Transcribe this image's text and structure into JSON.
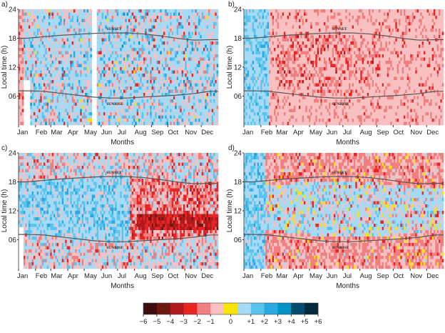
{
  "chart_data": {
    "type": "heatmap",
    "xlabel": "Months",
    "ylabel": "Local time (h)",
    "x_ticks": [
      "Jan",
      "Feb",
      "Mar",
      "Apr",
      "May",
      "Jun",
      "Jul",
      "Aug",
      "Sep",
      "Oct",
      "Nov",
      "Dec"
    ],
    "y_ticks": [
      "24",
      "18",
      "12",
      "06"
    ],
    "y_tick_values": [
      24,
      18,
      12,
      6
    ],
    "ylim": [
      0,
      24
    ],
    "xlim_days": [
      0,
      365
    ],
    "annotations": {
      "sunset": "SUNSET",
      "sunrise": "SUNRISE"
    },
    "sunset_hours_by_month": [
      18.0,
      18.3,
      18.6,
      18.8,
      19.0,
      19.1,
      19.1,
      18.9,
      18.5,
      18.0,
      17.6,
      17.7
    ],
    "sunrise_hours_by_month": [
      7.1,
      7.0,
      6.6,
      6.2,
      5.8,
      5.6,
      5.6,
      5.8,
      6.0,
      6.2,
      6.5,
      7.0
    ],
    "panels": [
      {
        "label": "a)",
        "dominant": {
          "Jan": -1,
          "rest": 1
        },
        "missing": "late May"
      },
      {
        "label": "b)",
        "dominant": {
          "Jan-Feb": 1,
          "rest_night": -1,
          "rest_day": -2
        }
      },
      {
        "label": "c)",
        "dominant": {
          "day_Jan-Jul": 1,
          "day_Aug-Dec": -3,
          "morning_Aug-Dec": -4,
          "night": -1
        }
      },
      {
        "label": "d)",
        "dominant": {
          "Jan-Feb": 2,
          "day": 1,
          "night": -2
        }
      }
    ],
    "colorbar": {
      "levels": [
        -6,
        -5,
        -4,
        -3,
        -2,
        -1,
        0,
        1,
        2,
        3,
        4,
        5,
        6
      ],
      "tick_labels": [
        "−6",
        "−5",
        "−4",
        "−3",
        "−2",
        "−1",
        "0",
        "+1",
        "+2",
        "+3",
        "+4",
        "+5",
        "+6"
      ],
      "colors": [
        "#3d0d0e",
        "#6e1610",
        "#b01a1c",
        "#e82424",
        "#f07f80",
        "#f8c0c0",
        "#f6e500",
        "#a6daf4",
        "#58c4ef",
        "#29a8e2",
        "#0092c9",
        "#024d6b",
        "#03293d"
      ]
    }
  }
}
